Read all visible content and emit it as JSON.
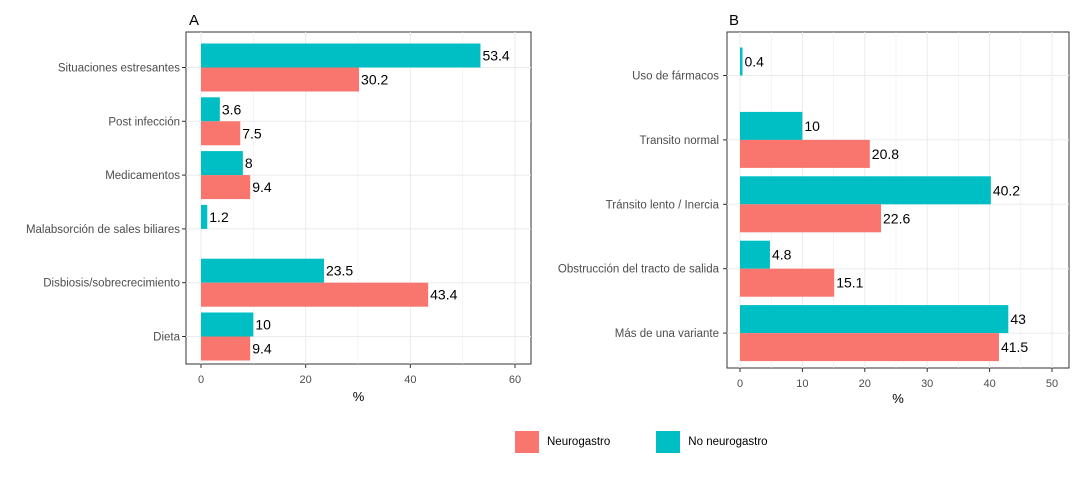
{
  "colors": {
    "neurogastro": "#F8766D",
    "no_neurogastro": "#00BFC4"
  },
  "legend": {
    "items": [
      {
        "key": "neurogastro",
        "label": "Neurogastro"
      },
      {
        "key": "no_neurogastro",
        "label": "No neurogastro"
      }
    ]
  },
  "chart_data": [
    {
      "type": "bar",
      "orientation": "horizontal",
      "panel": "A",
      "title": "",
      "xlabel": "%",
      "ylabel": "",
      "xlim": [
        0,
        60
      ],
      "xticks": [
        0,
        20,
        40,
        60
      ],
      "grid": true,
      "legend_position": "bottom",
      "categories": [
        "Situaciones estresantes",
        "Post infección",
        "Medicamentos",
        "Malabsorción de sales biliares",
        "Disbiosis/sobrecrecimiento",
        "Dieta"
      ],
      "series": [
        {
          "name": "No neurogastro",
          "color_key": "no_neurogastro",
          "values": [
            53.4,
            3.6,
            8,
            1.2,
            23.5,
            10
          ]
        },
        {
          "name": "Neurogastro",
          "color_key": "neurogastro",
          "values": [
            30.2,
            7.5,
            9.4,
            null,
            43.4,
            9.4
          ]
        }
      ]
    },
    {
      "type": "bar",
      "orientation": "horizontal",
      "panel": "B",
      "title": "",
      "xlabel": "%",
      "ylabel": "",
      "xlim": [
        0,
        50
      ],
      "xticks": [
        0,
        10,
        20,
        30,
        40,
        50
      ],
      "grid": true,
      "legend_position": "bottom",
      "categories": [
        "Uso de fármacos",
        "Transito normal",
        "Tránsito lento / Inercia",
        "Obstrucción del tracto de salida",
        "Más de una variante"
      ],
      "series": [
        {
          "name": "No neurogastro",
          "color_key": "no_neurogastro",
          "values": [
            0.4,
            10,
            40.2,
            4.8,
            43
          ]
        },
        {
          "name": "Neurogastro",
          "color_key": "neurogastro",
          "values": [
            null,
            20.8,
            22.6,
            15.1,
            41.5
          ]
        }
      ]
    }
  ]
}
